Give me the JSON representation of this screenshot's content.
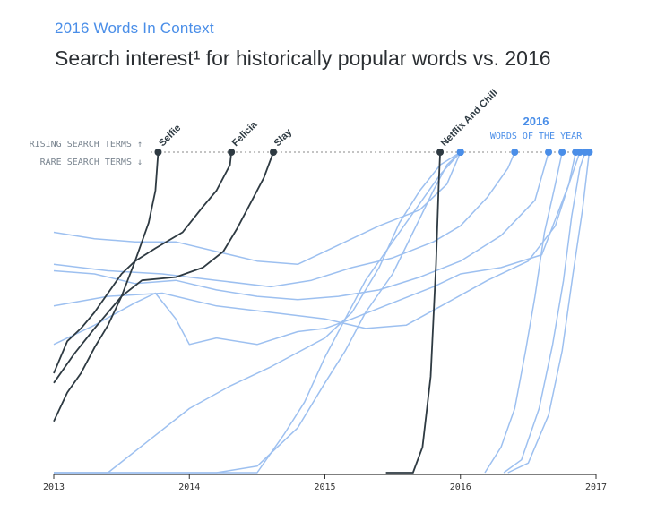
{
  "header": {
    "subtitle": "2016 Words In Context",
    "title": "Search interest¹ for historically popular words vs. 2016"
  },
  "annotations": {
    "rising": "RISING SEARCH TERMS ↑",
    "rare": "RARE SEARCH TERMS ↓",
    "year_label": "2016",
    "year_sub": "WORDS OF THE YEAR"
  },
  "colors": {
    "dark_series": "#2e3a42",
    "light_series": "#9dc0f0",
    "accent": "#4a8ee8",
    "axis": "#333333"
  },
  "chart_data": {
    "type": "line",
    "x_ticks": [
      "2013",
      "2014",
      "2015",
      "2016",
      "2017"
    ],
    "xlim": [
      2013.0,
      2017.0
    ],
    "ylim": [
      0,
      100
    ],
    "grid": false,
    "series": [
      {
        "name": "Selfie",
        "style": "dark",
        "labeled": true,
        "points": [
          [
            2013.0,
            16
          ],
          [
            2013.1,
            25
          ],
          [
            2013.2,
            31
          ],
          [
            2013.3,
            39
          ],
          [
            2013.4,
            46
          ],
          [
            2013.5,
            55
          ],
          [
            2013.6,
            66
          ],
          [
            2013.7,
            78
          ],
          [
            2013.75,
            88
          ],
          [
            2013.77,
            100
          ]
        ]
      },
      {
        "name": "Felicia",
        "style": "dark",
        "labeled": true,
        "points": [
          [
            2013.0,
            31
          ],
          [
            2013.1,
            41
          ],
          [
            2013.2,
            45
          ],
          [
            2013.3,
            50
          ],
          [
            2013.4,
            56
          ],
          [
            2013.5,
            62
          ],
          [
            2013.6,
            66
          ],
          [
            2013.75,
            70
          ],
          [
            2013.95,
            75
          ],
          [
            2014.1,
            83
          ],
          [
            2014.2,
            88
          ],
          [
            2014.3,
            96
          ],
          [
            2014.31,
            100
          ]
        ]
      },
      {
        "name": "Slay",
        "style": "dark",
        "labeled": true,
        "points": [
          [
            2013.0,
            28
          ],
          [
            2013.15,
            37
          ],
          [
            2013.3,
            45
          ],
          [
            2013.5,
            55
          ],
          [
            2013.65,
            60
          ],
          [
            2013.9,
            61
          ],
          [
            2014.1,
            64
          ],
          [
            2014.25,
            69
          ],
          [
            2014.35,
            76
          ],
          [
            2014.45,
            84
          ],
          [
            2014.55,
            92
          ],
          [
            2014.62,
            100
          ]
        ]
      },
      {
        "name": "Netflix And Chill",
        "style": "dark",
        "labeled": true,
        "points": [
          [
            2015.45,
            0
          ],
          [
            2015.55,
            0
          ],
          [
            2015.65,
            0
          ],
          [
            2015.72,
            8
          ],
          [
            2015.78,
            30
          ],
          [
            2015.82,
            65
          ],
          [
            2015.84,
            90
          ],
          [
            2015.85,
            100
          ]
        ]
      },
      {
        "name": "",
        "style": "light",
        "labeled": false,
        "points": [
          [
            2013.0,
            75
          ],
          [
            2013.3,
            73
          ],
          [
            2013.6,
            72
          ],
          [
            2013.9,
            72
          ],
          [
            2014.2,
            69
          ],
          [
            2014.5,
            66
          ],
          [
            2014.8,
            65
          ],
          [
            2015.1,
            71
          ],
          [
            2015.4,
            77
          ],
          [
            2015.7,
            82
          ],
          [
            2015.9,
            90
          ],
          [
            2016.0,
            100
          ]
        ]
      },
      {
        "name": "",
        "style": "light",
        "labeled": false,
        "points": [
          [
            2013.0,
            65
          ],
          [
            2013.4,
            63
          ],
          [
            2013.8,
            62
          ],
          [
            2014.2,
            60
          ],
          [
            2014.6,
            58
          ],
          [
            2014.9,
            60
          ],
          [
            2015.2,
            64
          ],
          [
            2015.5,
            67
          ],
          [
            2015.8,
            72
          ],
          [
            2016.0,
            77
          ],
          [
            2016.2,
            86
          ],
          [
            2016.35,
            95
          ],
          [
            2016.4,
            100
          ]
        ]
      },
      {
        "name": "",
        "style": "light",
        "labeled": false,
        "points": [
          [
            2013.0,
            63
          ],
          [
            2013.3,
            62
          ],
          [
            2013.6,
            59
          ],
          [
            2013.9,
            60
          ],
          [
            2014.2,
            57
          ],
          [
            2014.5,
            55
          ],
          [
            2014.8,
            54
          ],
          [
            2015.1,
            55
          ],
          [
            2015.4,
            57
          ],
          [
            2015.7,
            61
          ],
          [
            2016.0,
            66
          ],
          [
            2016.3,
            74
          ],
          [
            2016.55,
            85
          ],
          [
            2016.65,
            100
          ]
        ]
      },
      {
        "name": "",
        "style": "light",
        "labeled": false,
        "points": [
          [
            2013.0,
            40
          ],
          [
            2013.3,
            46
          ],
          [
            2013.6,
            53
          ],
          [
            2013.75,
            56
          ],
          [
            2013.9,
            48
          ],
          [
            2014.0,
            40
          ],
          [
            2014.2,
            42
          ],
          [
            2014.5,
            40
          ],
          [
            2014.8,
            44
          ],
          [
            2015.0,
            45
          ],
          [
            2015.2,
            48
          ],
          [
            2015.5,
            53
          ],
          [
            2015.8,
            58
          ],
          [
            2016.0,
            62
          ],
          [
            2016.3,
            64
          ],
          [
            2016.6,
            68
          ],
          [
            2016.8,
            90
          ],
          [
            2016.88,
            100
          ]
        ]
      },
      {
        "name": "",
        "style": "light",
        "labeled": false,
        "points": [
          [
            2013.0,
            52
          ],
          [
            2013.4,
            55
          ],
          [
            2013.8,
            56
          ],
          [
            2014.2,
            52
          ],
          [
            2014.6,
            50
          ],
          [
            2015.0,
            48
          ],
          [
            2015.3,
            45
          ],
          [
            2015.6,
            46
          ],
          [
            2015.9,
            53
          ],
          [
            2016.2,
            60
          ],
          [
            2016.5,
            66
          ],
          [
            2016.7,
            77
          ],
          [
            2016.8,
            90
          ],
          [
            2016.85,
            100
          ]
        ]
      },
      {
        "name": "",
        "style": "light",
        "labeled": false,
        "points": [
          [
            2013.0,
            0
          ],
          [
            2013.4,
            0
          ],
          [
            2013.7,
            10
          ],
          [
            2014.0,
            20
          ],
          [
            2014.3,
            27
          ],
          [
            2014.6,
            33
          ],
          [
            2015.0,
            42
          ],
          [
            2015.2,
            50
          ],
          [
            2015.4,
            64
          ],
          [
            2015.55,
            78
          ],
          [
            2015.7,
            88
          ],
          [
            2015.85,
            96
          ],
          [
            2016.0,
            100
          ]
        ]
      },
      {
        "name": "",
        "style": "light",
        "labeled": false,
        "points": [
          [
            2013.0,
            0
          ],
          [
            2013.5,
            0
          ],
          [
            2013.8,
            0
          ],
          [
            2014.2,
            0
          ],
          [
            2014.5,
            2
          ],
          [
            2014.8,
            14
          ],
          [
            2015.0,
            28
          ],
          [
            2015.15,
            38
          ],
          [
            2015.3,
            50
          ],
          [
            2015.5,
            62
          ],
          [
            2015.65,
            75
          ],
          [
            2015.8,
            88
          ],
          [
            2015.9,
            96
          ],
          [
            2016.0,
            100
          ]
        ]
      },
      {
        "name": "",
        "style": "light",
        "labeled": false,
        "points": [
          [
            2013.0,
            0
          ],
          [
            2013.5,
            0
          ],
          [
            2014.0,
            0
          ],
          [
            2014.3,
            0
          ],
          [
            2014.5,
            0
          ],
          [
            2014.7,
            12
          ],
          [
            2014.85,
            22
          ],
          [
            2015.0,
            36
          ],
          [
            2015.15,
            48
          ],
          [
            2015.3,
            60
          ],
          [
            2015.5,
            72
          ],
          [
            2015.7,
            84
          ],
          [
            2015.85,
            93
          ],
          [
            2016.0,
            100
          ]
        ]
      },
      {
        "name": "",
        "style": "light",
        "labeled": false,
        "points": [
          [
            2016.18,
            0
          ],
          [
            2016.3,
            8
          ],
          [
            2016.4,
            20
          ],
          [
            2016.48,
            38
          ],
          [
            2016.55,
            55
          ],
          [
            2016.62,
            75
          ],
          [
            2016.7,
            90
          ],
          [
            2016.75,
            100
          ]
        ]
      },
      {
        "name": "",
        "style": "light",
        "labeled": false,
        "points": [
          [
            2016.32,
            0
          ],
          [
            2016.45,
            4
          ],
          [
            2016.58,
            20
          ],
          [
            2016.68,
            40
          ],
          [
            2016.76,
            60
          ],
          [
            2016.82,
            80
          ],
          [
            2016.88,
            95
          ],
          [
            2016.92,
            100
          ]
        ]
      },
      {
        "name": "",
        "style": "light",
        "labeled": false,
        "points": [
          [
            2016.35,
            0
          ],
          [
            2016.5,
            3
          ],
          [
            2016.65,
            18
          ],
          [
            2016.75,
            38
          ],
          [
            2016.83,
            62
          ],
          [
            2016.9,
            82
          ],
          [
            2016.95,
            100
          ]
        ]
      }
    ]
  }
}
